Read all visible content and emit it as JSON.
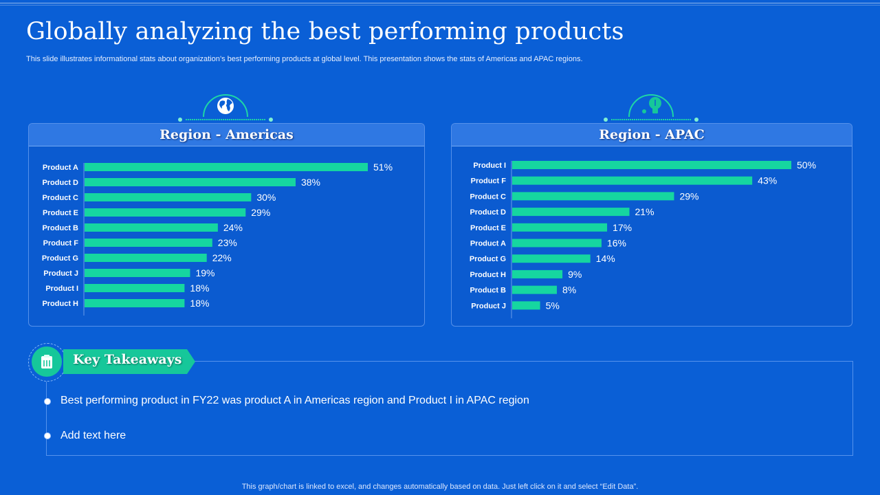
{
  "title": "Globally analyzing the best performing products",
  "subtitle": "This slide illustrates informational stats about organization’s best performing products at global level. This presentation shows the stats of Americas and APAC  regions.",
  "footer": "This graph/chart is linked to excel,  and changes automatically based on data. Just left click on it and select “Edit Data”.",
  "colors": {
    "background": "#0a5fd6",
    "bar": "#16d6a0",
    "accent": "#16c79a"
  },
  "icons": {
    "americas": "globe-icon",
    "apac": "lightbulb-icon",
    "takeaways": "clipboard-icon"
  },
  "chart_data": [
    {
      "type": "bar",
      "orientation": "horizontal",
      "title": "Region - Americas",
      "categories": [
        "Product A",
        "Product D",
        "Product C",
        "Product E",
        "Product B",
        "Product F",
        "Product G",
        "Product J",
        "Product I",
        "Product H"
      ],
      "values": [
        51,
        38,
        30,
        29,
        24,
        23,
        22,
        19,
        18,
        18
      ],
      "labels": [
        "51%",
        "38%",
        "30%",
        "29%",
        "24%",
        "23%",
        "22%",
        "19%",
        "18%",
        "18%"
      ],
      "unit": "%",
      "xlim": [
        0,
        51
      ]
    },
    {
      "type": "bar",
      "orientation": "horizontal",
      "title": "Region - APAC",
      "categories": [
        "Product I",
        "Product F",
        "Product C",
        "Product D",
        "Product E",
        "Product A",
        "Product G",
        "Product H",
        "Product B",
        "Product J"
      ],
      "values": [
        50,
        43,
        29,
        21,
        17,
        16,
        14,
        9,
        8,
        5
      ],
      "labels": [
        "50%",
        "43%",
        "29%",
        "21%",
        "17%",
        "16%",
        "14%",
        "9%",
        "8%",
        "5%"
      ],
      "unit": "%",
      "xlim": [
        0,
        50
      ]
    }
  ],
  "takeaways": {
    "label": "Key Takeaways",
    "items": [
      "Best performing product in FY22 was product A in Americas region and Product I in APAC region",
      "Add text here"
    ]
  }
}
